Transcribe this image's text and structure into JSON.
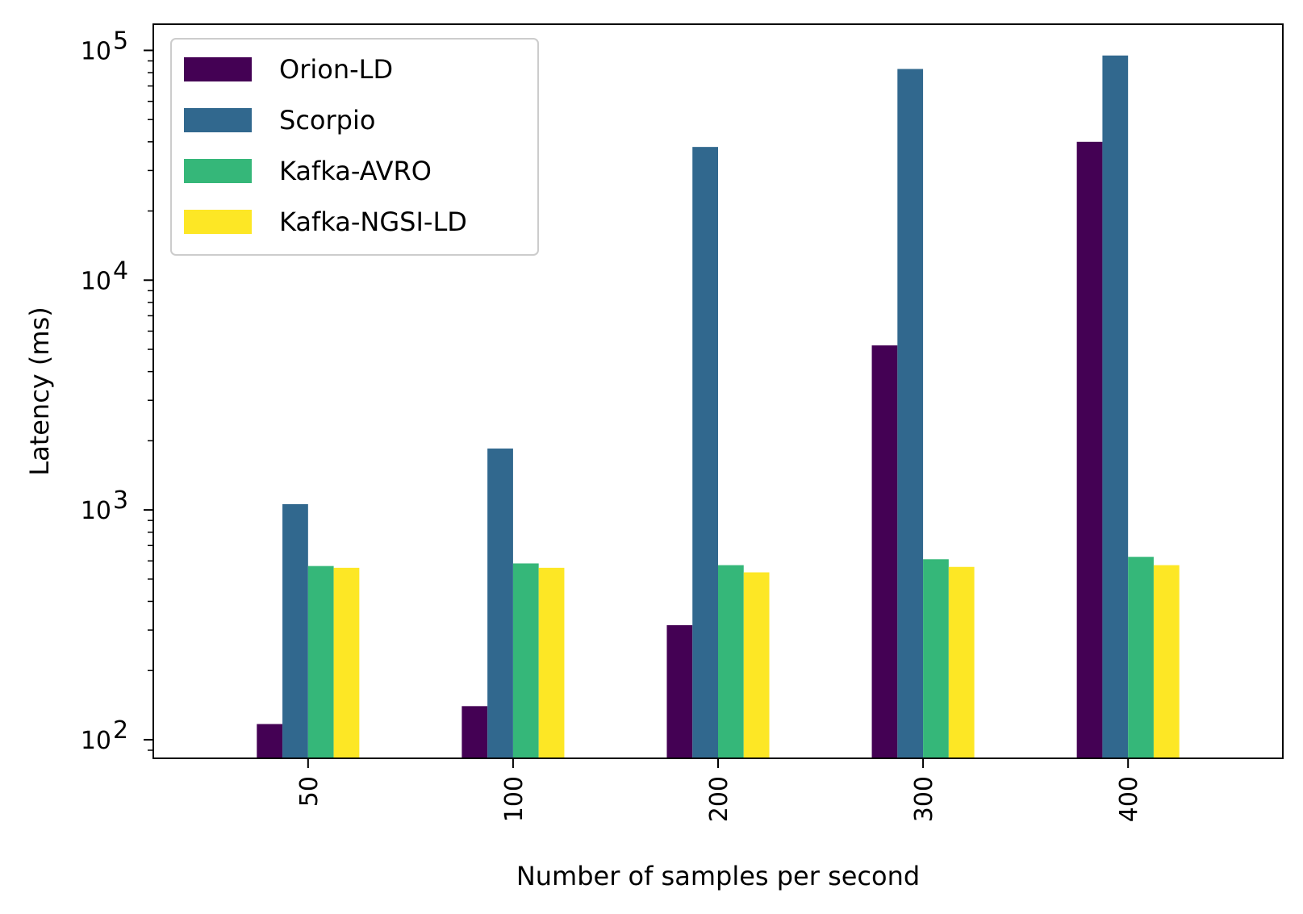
{
  "chart_data": {
    "type": "bar",
    "xlabel": "Number of samples per second",
    "ylabel": "Latency (ms)",
    "yscale": "log",
    "ylim": [
      83,
      130000
    ],
    "categories": [
      "50",
      "100",
      "200",
      "300",
      "400"
    ],
    "y_ticks": [
      {
        "value": 100,
        "base": "10",
        "exp": "2"
      },
      {
        "value": 1000,
        "base": "10",
        "exp": "3"
      },
      {
        "value": 10000,
        "base": "10",
        "exp": "4"
      },
      {
        "value": 100000,
        "base": "10",
        "exp": "5"
      }
    ],
    "series": [
      {
        "name": "Orion-LD",
        "color": "#440154",
        "values": [
          117,
          140,
          315,
          5200,
          40000
        ]
      },
      {
        "name": "Scorpio",
        "color": "#31688e",
        "values": [
          1060,
          1850,
          38000,
          83000,
          95000
        ]
      },
      {
        "name": "Kafka-AVRO",
        "color": "#35b779",
        "values": [
          570,
          585,
          575,
          610,
          625
        ]
      },
      {
        "name": "Kafka-NGSI-LD",
        "color": "#fde725",
        "values": [
          560,
          560,
          535,
          565,
          575
        ]
      }
    ],
    "legend_position": "top-left",
    "grid": false
  }
}
